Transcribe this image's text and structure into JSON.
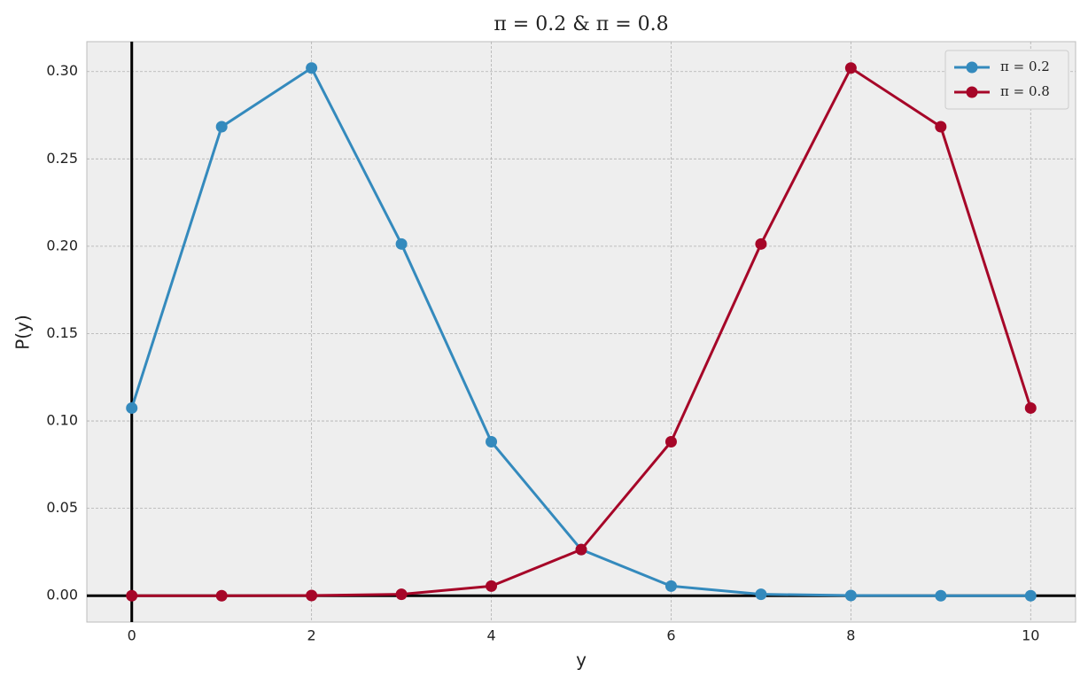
{
  "chart_data": {
    "type": "line",
    "title": "π = 0.2 & π = 0.8",
    "x_label": "y",
    "y_label": "P(y)",
    "x": [
      0,
      1,
      2,
      3,
      4,
      5,
      6,
      7,
      8,
      9,
      10
    ],
    "series": [
      {
        "name": "π = 0.2",
        "color": "#348abd",
        "values": [
          0.1074,
          0.2684,
          0.302,
          0.2013,
          0.0881,
          0.0264,
          0.0055,
          0.0008,
          0.0001,
          0.0,
          0.0
        ]
      },
      {
        "name": "π = 0.8",
        "color": "#a60628",
        "values": [
          0.0,
          0.0,
          0.0001,
          0.0008,
          0.0055,
          0.0264,
          0.0881,
          0.2013,
          0.302,
          0.2684,
          0.1074
        ]
      }
    ],
    "xlim": [
      -0.5,
      10.5
    ],
    "ylim": [
      -0.0151,
      0.3171
    ],
    "xticks": [
      0,
      2,
      4,
      6,
      8,
      10
    ],
    "yticks": [
      {
        "value": 0,
        "label": "0.00"
      },
      {
        "value": 0.05,
        "label": "0.05"
      },
      {
        "value": 0.1,
        "label": "0.10"
      },
      {
        "value": 0.15,
        "label": "0.15"
      },
      {
        "value": 0.2,
        "label": "0.20"
      },
      {
        "value": 0.25,
        "label": "0.25"
      },
      {
        "value": 0.3,
        "label": "0.30"
      }
    ],
    "grid": true,
    "legend": "upper right"
  }
}
